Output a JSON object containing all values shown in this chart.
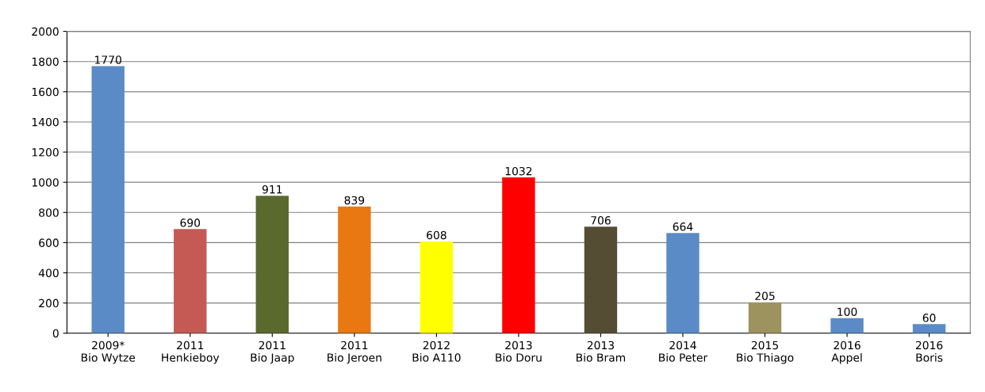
{
  "chart_data": {
    "type": "bar",
    "categories": [
      "2009*\nBio Wytze",
      "2011\nHenkieboy",
      "2011\nBio Jaap",
      "2011\nBio Jeroen",
      "2012\nBio A110",
      "2013\nBio Doru",
      "2013\nBio Bram",
      "2014\nBio Peter",
      "2015\nBio Thiago",
      "2016\nAppel",
      "2016\nBoris"
    ],
    "values": [
      1770,
      690,
      911,
      839,
      608,
      1032,
      706,
      664,
      205,
      100,
      60
    ],
    "colors": [
      "#5b8bc6",
      "#c55a55",
      "#5a6a2f",
      "#e97812",
      "#ffff00",
      "#ff0000",
      "#554d33",
      "#5b8bc6",
      "#9d935e",
      "#5b8bc6",
      "#5b8bc6"
    ],
    "data_labels": true,
    "ylim": [
      0,
      2000
    ],
    "yticks": [
      0,
      200,
      400,
      600,
      800,
      1000,
      1200,
      1400,
      1600,
      1800,
      2000
    ],
    "grid": "y",
    "legend": false
  }
}
